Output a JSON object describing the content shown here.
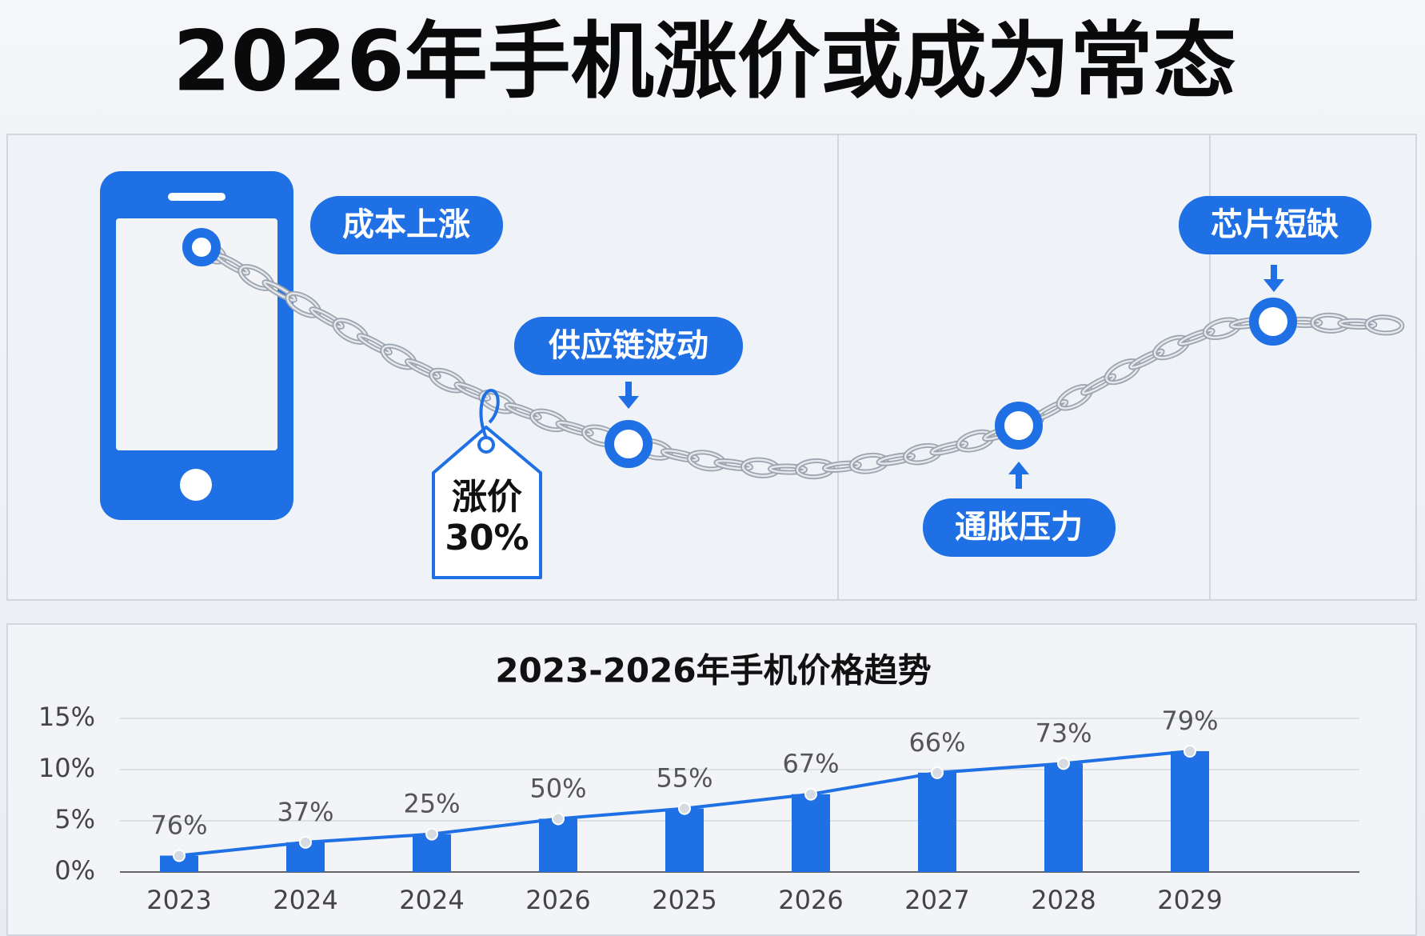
{
  "header": {
    "title": "2026年手机涨价或成为常态"
  },
  "illustration": {
    "labels": [
      "成本上涨",
      "供应链波动",
      "通胀压力",
      "芯片短缺"
    ],
    "tag": [
      "涨价",
      "30%"
    ]
  },
  "chart_data": {
    "type": "bar",
    "title": "2023-2026年手机价格趋势",
    "categories": [
      "2023",
      "2024",
      "2024",
      "2026",
      "2025",
      "2026",
      "2027",
      "2028",
      "2029"
    ],
    "values": [
      1.6,
      2.9,
      3.7,
      5.2,
      6.2,
      7.6,
      9.7,
      10.6,
      11.8
    ],
    "annotations": [
      "76%",
      "37%",
      "25%",
      "50%",
      "55%",
      "67%",
      "66%",
      "73%",
      "79%"
    ],
    "color": "#1f6fe5",
    "line_color": "#1f6fe5",
    "ylim": [
      0,
      15
    ],
    "yticks": [
      {
        "value": 0,
        "label": "0%"
      },
      {
        "value": 5,
        "label": "5%"
      },
      {
        "value": 10,
        "label": "10%"
      },
      {
        "value": 15,
        "label": "15%"
      }
    ],
    "grid": true
  }
}
